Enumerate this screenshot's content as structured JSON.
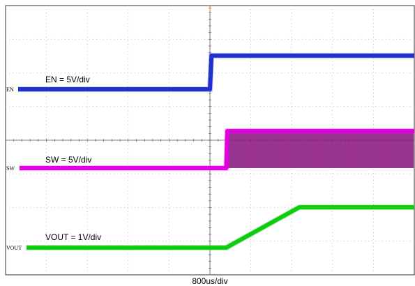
{
  "chart_data": {
    "type": "line",
    "x_unit": "us",
    "x_scale_per_div": 800,
    "x_divisions": 10,
    "y_divisions": 8,
    "grid": true,
    "trigger_marker": "T",
    "xlabel": "800us/div",
    "series": [
      {
        "name": "EN",
        "label": "EN = 5V/div",
        "marker_label": "EN",
        "color": "#1f2fd0",
        "x": [
          0,
          4000,
          4030,
          8000
        ],
        "values": [
          0,
          0,
          5.0,
          5.0
        ]
      },
      {
        "name": "SW",
        "label": "SW = 5V/div",
        "marker_label": "SW",
        "color": "#e000e0",
        "burst_color": "#7a1a6e",
        "x": [
          0,
          4320,
          4340,
          8000
        ],
        "values": [
          0,
          0,
          5.5,
          5.5
        ]
      },
      {
        "name": "VOUT",
        "label": "VOUT = 1V/div",
        "marker_label": "VOUT",
        "color": "#11cc11",
        "x": [
          0,
          4320,
          5750,
          8000
        ],
        "values": [
          0,
          0,
          1.2,
          1.2
        ]
      }
    ]
  }
}
